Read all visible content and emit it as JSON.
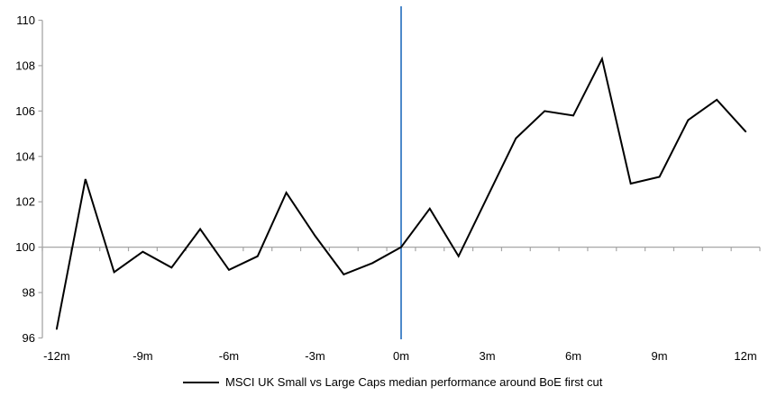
{
  "chart_data": {
    "type": "line",
    "title": "",
    "x": [
      -12,
      -11,
      -10,
      -9,
      -8,
      -7,
      -6,
      -5,
      -4,
      -3,
      -2,
      -1,
      0,
      1,
      2,
      3,
      4,
      5,
      6,
      7,
      8,
      9,
      10,
      11,
      12
    ],
    "series": [
      {
        "name": "MSCI UK Small vs Large Caps median performance around BoE first cut",
        "values": [
          96.4,
          103.0,
          98.9,
          99.8,
          99.1,
          100.8,
          99.0,
          99.6,
          102.4,
          100.5,
          98.8,
          99.3,
          100.0,
          101.7,
          99.6,
          102.2,
          104.8,
          106.0,
          105.8,
          108.3,
          102.8,
          103.1,
          105.6,
          106.5,
          105.1
        ]
      }
    ],
    "ylim": [
      96,
      110
    ],
    "yticks": [
      96,
      98,
      100,
      102,
      104,
      106,
      108,
      110
    ],
    "xticks": [
      {
        "m": -12,
        "label": "-12m"
      },
      {
        "m": -9,
        "label": "-9m"
      },
      {
        "m": -6,
        "label": "-6m"
      },
      {
        "m": -3,
        "label": "-3m"
      },
      {
        "m": 0,
        "label": "0m"
      },
      {
        "m": 3,
        "label": "3m"
      },
      {
        "m": 6,
        "label": "6m"
      },
      {
        "m": 9,
        "label": "9m"
      },
      {
        "m": 12,
        "label": "12m"
      }
    ],
    "baseline": 100,
    "event_line_month": 0,
    "grid": "none",
    "legend_position": "bottom",
    "colors": {
      "series_line": "#000000",
      "axis": "#a6a6a6",
      "event_line": "#4e89ca",
      "text": "#000000",
      "background": "#ffffff"
    }
  }
}
